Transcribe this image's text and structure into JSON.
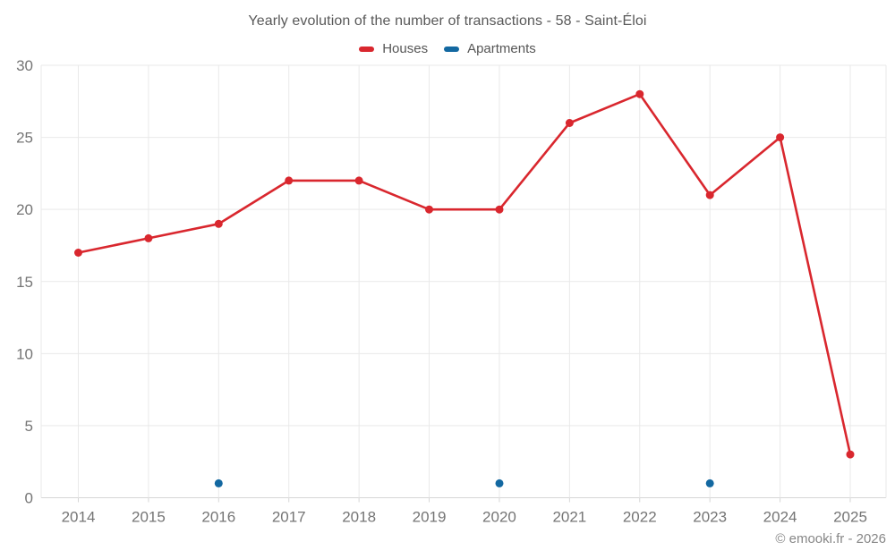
{
  "header": {
    "title": "Yearly evolution of the number of transactions - 58 - Saint-Éloi"
  },
  "footer": {
    "credit": "© emooki.fr - 2026"
  },
  "colors": {
    "houses": "#d9272e",
    "apartments": "#1368a1",
    "grid": "#e9e9e9",
    "axis": "#d6d6d6",
    "tick_label": "#757575",
    "title_text": "#595959"
  },
  "chart_data": {
    "type": "line",
    "title": "Yearly evolution of the number of transactions - 58 - Saint-Éloi",
    "categories": [
      "2014",
      "2015",
      "2016",
      "2017",
      "2018",
      "2019",
      "2020",
      "2021",
      "2022",
      "2023",
      "2024",
      "2025"
    ],
    "series": [
      {
        "name": "Houses",
        "color": "#d9272e",
        "draw_line": true,
        "marker_radius": 4.5,
        "values": [
          17,
          18,
          19,
          22,
          22,
          20,
          20,
          26,
          28,
          21,
          25,
          3
        ]
      },
      {
        "name": "Apartments",
        "color": "#1368a1",
        "draw_line": false,
        "marker_radius": 4.5,
        "values": [
          null,
          null,
          1,
          null,
          null,
          null,
          1,
          null,
          null,
          1,
          null,
          null
        ]
      }
    ],
    "xlabel": "",
    "ylabel": "",
    "ylim": [
      0,
      30
    ],
    "yticks": [
      0,
      5,
      10,
      15,
      20,
      25,
      30
    ],
    "grid": "on",
    "legend_position": "top"
  }
}
